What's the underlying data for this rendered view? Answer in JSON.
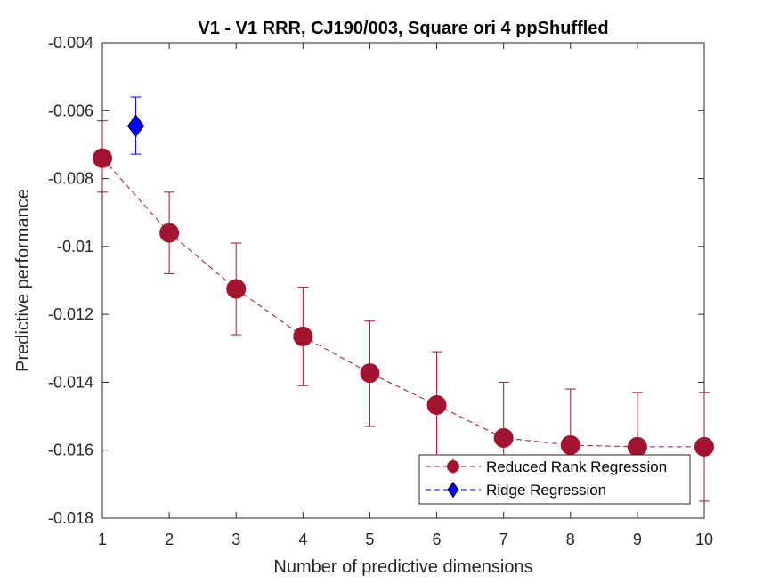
{
  "chart_data": {
    "type": "line",
    "title": "V1 - V1 RRR, CJ190/003, Square ori 4 ppShuffled",
    "xlabel": "Number of predictive dimensions",
    "ylabel": "Predictive performance",
    "xlim": [
      1,
      10
    ],
    "ylim": [
      -0.018,
      -0.004
    ],
    "xticks": [
      1,
      2,
      3,
      4,
      5,
      6,
      7,
      8,
      9,
      10
    ],
    "xtick_labels": [
      "1",
      "2",
      "3",
      "4",
      "5",
      "6",
      "7",
      "8",
      "9",
      "10"
    ],
    "yticks": [
      -0.018,
      -0.016,
      -0.014,
      -0.012,
      -0.01,
      -0.008,
      -0.006,
      -0.004
    ],
    "ytick_labels": [
      "-0.018",
      "-0.016",
      "-0.014",
      "-0.012",
      "-0.01",
      "-0.008",
      "-0.006",
      "-0.004"
    ],
    "grid": false,
    "legend_position": "bottom-right",
    "series": [
      {
        "name": "Reduced Rank Regression",
        "color": "#a2142f",
        "marker": "circle",
        "line": "dashed",
        "x": [
          1,
          2,
          3,
          4,
          5,
          6,
          7,
          8,
          9,
          10
        ],
        "y": [
          -0.0074,
          -0.0096,
          -0.01125,
          -0.01265,
          -0.01373,
          -0.01467,
          -0.01564,
          -0.01585,
          -0.0159,
          -0.0159
        ],
        "err_low": [
          -0.0084,
          -0.0108,
          -0.0126,
          -0.0141,
          -0.0153,
          -0.0163,
          -0.0165,
          -0.0159,
          -0.0159,
          -0.0175
        ],
        "err_high": [
          -0.0063,
          -0.0084,
          -0.0099,
          -0.0112,
          -0.0122,
          -0.0131,
          -0.014,
          -0.0142,
          -0.0143,
          -0.0143
        ]
      },
      {
        "name": "Ridge Regression",
        "color": "#0000ff",
        "marker": "diamond",
        "x": [
          1.5
        ],
        "y": [
          -0.00645
        ],
        "err_low": [
          -0.00728
        ],
        "err_high": [
          -0.0056
        ]
      }
    ]
  }
}
